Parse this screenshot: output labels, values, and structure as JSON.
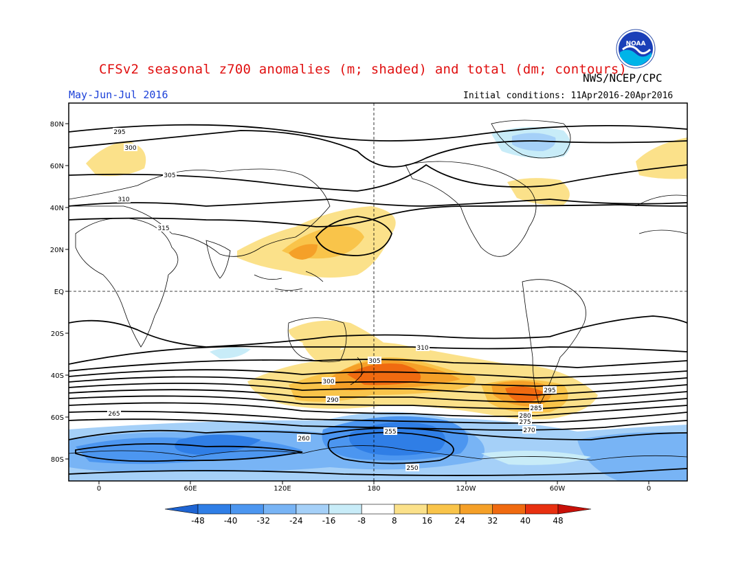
{
  "title": "CFSv2 seasonal z700 anomalies (m; shaded) and total (dm; contours)",
  "agency": "NWS/NCEP/CPC",
  "season": "May-Jun-Jul 2016",
  "initial_conditions": "Initial conditions: 11Apr2016-20Apr2016",
  "logo_text": "NOAA",
  "lat_ticks": [
    "80N",
    "60N",
    "40N",
    "20N",
    "EQ",
    "20S",
    "40S",
    "60S",
    "80S"
  ],
  "lon_ticks": [
    "0",
    "60E",
    "120E",
    "180",
    "120W",
    "60W",
    "0"
  ],
  "colorbar": {
    "labels": [
      "-48",
      "-40",
      "-32",
      "-24",
      "-16",
      "-8",
      "8",
      "16",
      "24",
      "32",
      "40",
      "48"
    ],
    "colors": [
      "#1e64d2",
      "#2f7ee6",
      "#4c96f0",
      "#78b4f5",
      "#a5d0f8",
      "#c8ecf8",
      "#ffffff",
      "#fbe18a",
      "#f9c44a",
      "#f5a028",
      "#f06a10",
      "#e83010",
      "#c81008"
    ]
  },
  "contour_labels": [
    "295",
    "300",
    "305",
    "310",
    "315",
    "310",
    "305",
    "300",
    "295",
    "290",
    "285",
    "280",
    "275",
    "270",
    "265",
    "260",
    "255",
    "250"
  ]
}
